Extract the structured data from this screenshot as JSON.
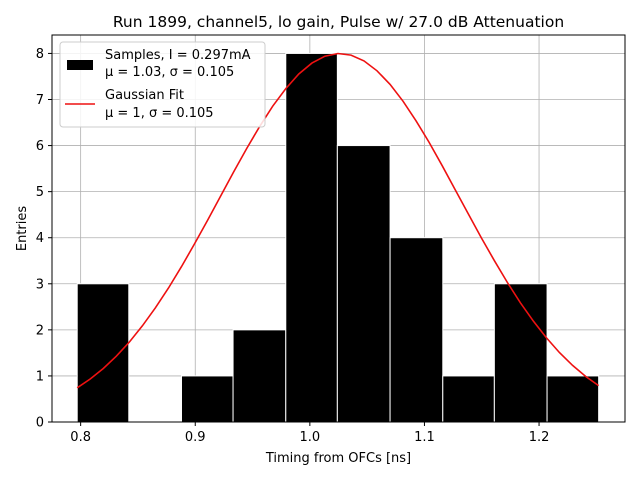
{
  "chart_data": {
    "type": "bar",
    "title": "Run 1899, channel5, lo gain, Pulse w/ 27.0 dB Attenuation",
    "xlabel": "Timing from OFCs [ns]",
    "ylabel": "Entries",
    "xlim": [
      0.775,
      1.275
    ],
    "ylim": [
      0,
      8.4
    ],
    "xticks": [
      0.8,
      0.9,
      1.0,
      1.1,
      1.2
    ],
    "xtick_labels": [
      "0.8",
      "0.9",
      "1.0",
      "1.1",
      "1.2"
    ],
    "yticks": [
      0,
      1,
      2,
      3,
      4,
      5,
      6,
      7,
      8
    ],
    "ytick_labels": [
      "0",
      "1",
      "2",
      "3",
      "4",
      "5",
      "6",
      "7",
      "8"
    ],
    "grid": true,
    "legend_position": "top-left",
    "histogram": {
      "name": "Samples, I = 0.297mA",
      "stats": "μ = 1.03, σ = 0.105",
      "color": "#000000",
      "edge_color": "#ffffff",
      "bins": [
        0.797,
        0.842,
        0.888,
        0.933,
        0.979,
        1.024,
        1.07,
        1.116,
        1.161,
        1.207,
        1.252
      ],
      "counts": [
        3,
        0,
        1,
        2,
        8,
        6,
        4,
        1,
        3,
        1
      ]
    },
    "fit": {
      "name": "Gaussian Fit",
      "stats": "μ = 1, σ = 0.105",
      "color": "#ee1111",
      "mu": 1.026,
      "sigma": 0.105,
      "amplitude": 8.0,
      "x_range": [
        0.797,
        1.252
      ]
    }
  }
}
